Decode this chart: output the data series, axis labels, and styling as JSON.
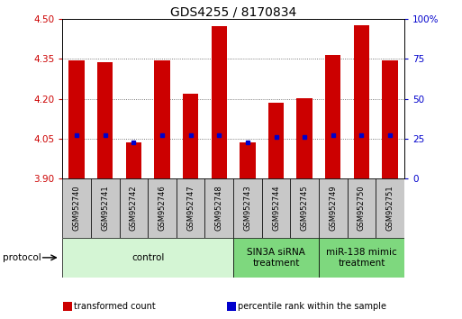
{
  "title": "GDS4255 / 8170834",
  "samples": [
    "GSM952740",
    "GSM952741",
    "GSM952742",
    "GSM952746",
    "GSM952747",
    "GSM952748",
    "GSM952743",
    "GSM952744",
    "GSM952745",
    "GSM952749",
    "GSM952750",
    "GSM952751"
  ],
  "transformed_count": [
    4.345,
    4.337,
    4.038,
    4.345,
    4.22,
    4.475,
    4.038,
    4.186,
    4.203,
    4.365,
    4.477,
    4.345
  ],
  "percentile_rank": [
    27,
    27,
    23,
    27,
    27,
    27,
    23,
    26,
    26,
    27,
    27,
    27
  ],
  "ylim_left": [
    3.9,
    4.5
  ],
  "ylim_right": [
    0,
    100
  ],
  "yticks_left": [
    3.9,
    4.05,
    4.2,
    4.35,
    4.5
  ],
  "yticks_right": [
    0,
    25,
    50,
    75,
    100
  ],
  "groups": [
    {
      "label": "control",
      "start": 0,
      "end": 6,
      "color": "#d4f5d4"
    },
    {
      "label": "SIN3A siRNA\ntreatment",
      "start": 6,
      "end": 9,
      "color": "#7ed87e"
    },
    {
      "label": "miR-138 mimic\ntreatment",
      "start": 9,
      "end": 12,
      "color": "#7ed87e"
    }
  ],
  "bar_color": "#cc0000",
  "dot_color": "#0000cc",
  "bar_bottom": 3.9,
  "bar_width": 0.55,
  "grid_color": "#555555",
  "tick_label_color_left": "#cc0000",
  "tick_label_color_right": "#0000cc",
  "legend_items": [
    {
      "label": "transformed count",
      "color": "#cc0000"
    },
    {
      "label": "percentile rank within the sample",
      "color": "#0000cc"
    }
  ],
  "protocol_label": "protocol"
}
